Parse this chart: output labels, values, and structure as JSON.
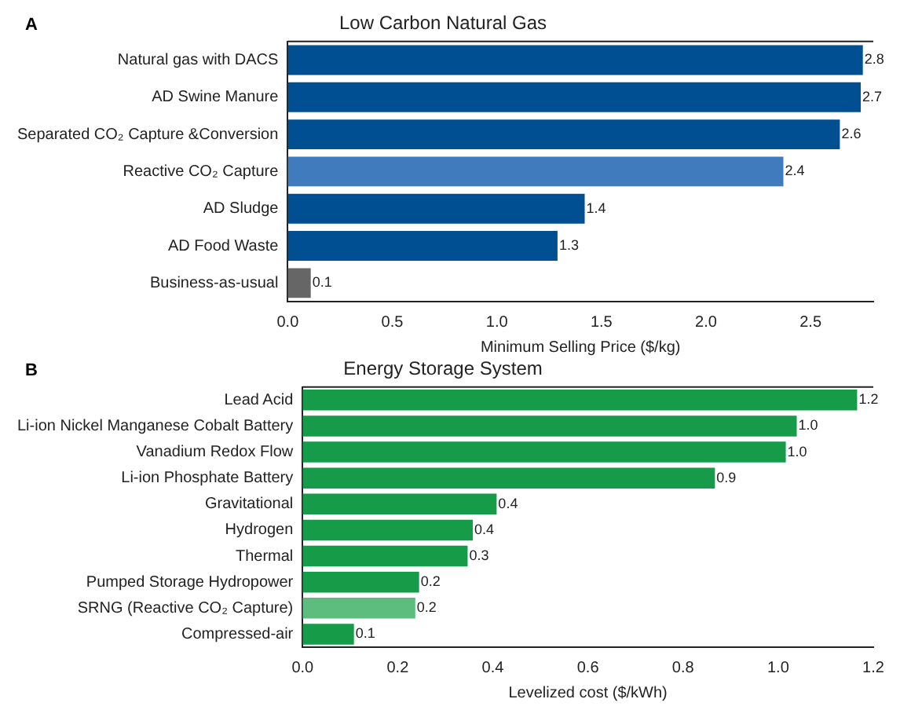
{
  "chart_data": [
    {
      "type": "bar",
      "orientation": "horizontal",
      "title": "Low Carbon Natural Gas",
      "xlabel": "Minimum Selling Price ($/kg)",
      "annotations": [
        "A"
      ],
      "categories": [
        "Natural gas with DACS",
        "AD Swine Manure",
        "Separated CO₂ Capture &Conversion",
        "Reactive CO₂ Capture",
        "AD Sludge",
        "AD Food Waste",
        "Business-as-usual"
      ],
      "values": [
        2.75,
        2.74,
        2.64,
        2.37,
        1.42,
        1.29,
        0.11
      ],
      "value_labels": [
        "2.8",
        "2.7",
        "2.6",
        "2.4",
        "1.4",
        "1.3",
        "0.1"
      ],
      "colors": [
        "#004f93",
        "#004f93",
        "#004f93",
        "#3f7bbd",
        "#004f93",
        "#004f93",
        "#666666"
      ],
      "xlim": [
        0,
        2.8
      ],
      "xticks": [
        {
          "value": 0,
          "label": "0.0"
        },
        {
          "value": 0.5,
          "label": "0.5"
        },
        {
          "value": 1,
          "label": "1.0"
        },
        {
          "value": 1.5,
          "label": "1.5"
        },
        {
          "value": 2,
          "label": "2.0"
        },
        {
          "value": 2.5,
          "label": "2.5"
        }
      ],
      "grid": false,
      "legend": false
    },
    {
      "type": "bar",
      "orientation": "horizontal",
      "title": "Energy Storage System",
      "xlabel": "Levelized cost ($/kWh)",
      "annotations": [
        "B"
      ],
      "categories": [
        "Lead Acid",
        "Li-ion Nickel Manganese Cobalt Battery",
        "Vanadium Redox Flow",
        "Li-ion Phosphate Battery",
        "Gravitational",
        "Hydrogen",
        "Thermal",
        "Pumped Storage Hydropower",
        "SRNG (Reactive CO₂ Capture)",
        "Compressed-air"
      ],
      "values": [
        1.166,
        1.039,
        1.016,
        0.867,
        0.408,
        0.358,
        0.347,
        0.245,
        0.237,
        0.108
      ],
      "value_labels": [
        "1.2",
        "1.0",
        "1.0",
        "0.9",
        "0.4",
        "0.4",
        "0.3",
        "0.2",
        "0.2",
        "0.1"
      ],
      "colors": [
        "#169b48",
        "#169b48",
        "#169b48",
        "#169b48",
        "#169b48",
        "#169b48",
        "#169b48",
        "#169b48",
        "#5cbd7e",
        "#169b48"
      ],
      "xlim": [
        0,
        1.2
      ],
      "xticks": [
        {
          "value": 0,
          "label": "0.0"
        },
        {
          "value": 0.2,
          "label": "0.2"
        },
        {
          "value": 0.4,
          "label": "0.4"
        },
        {
          "value": 0.6,
          "label": "0.6"
        },
        {
          "value": 0.8,
          "label": "0.8"
        },
        {
          "value": 1,
          "label": "1.0"
        },
        {
          "value": 1.2,
          "label": "1.2"
        }
      ],
      "grid": false,
      "legend": false
    }
  ]
}
